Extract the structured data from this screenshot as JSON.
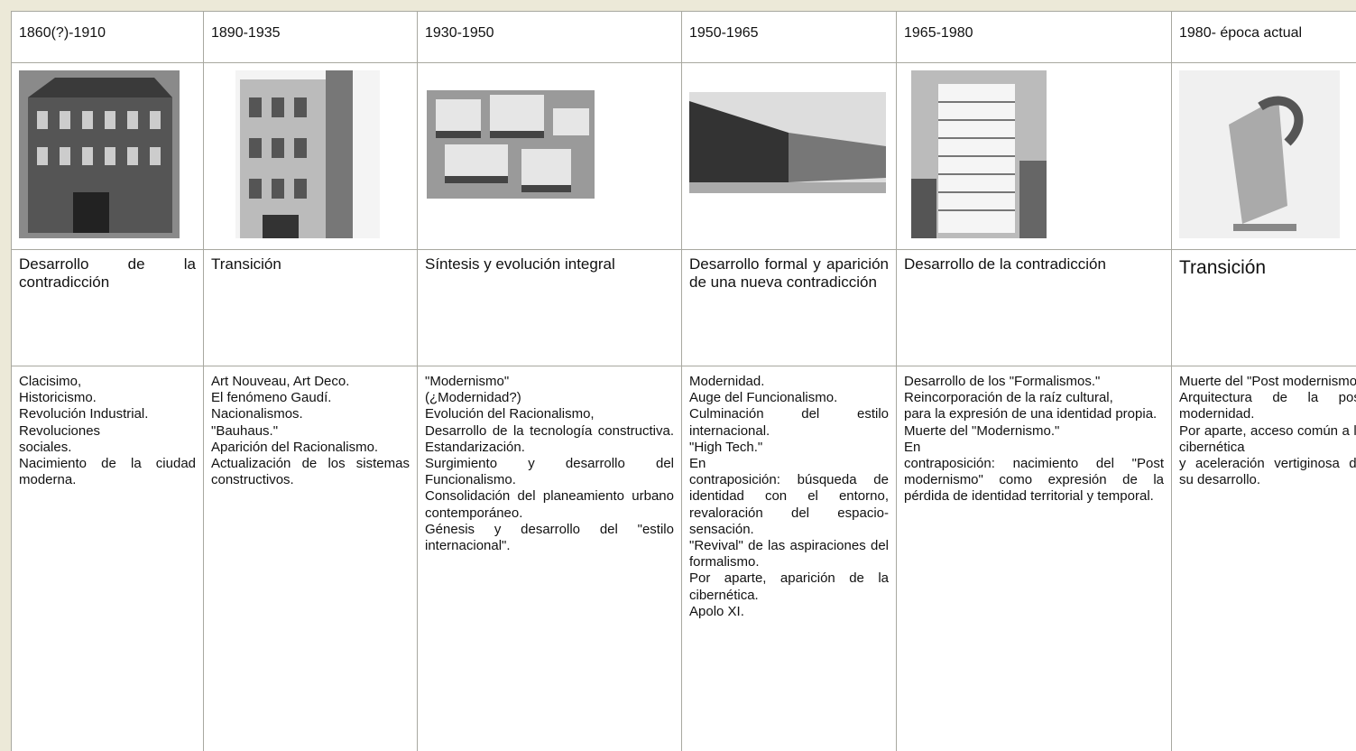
{
  "table": {
    "periods": [
      "1860(?)-1910",
      "1890-1935",
      "1930-1950",
      "1950-1965",
      "1965-1980",
      "1980- época actual"
    ],
    "titles": [
      "Desarrollo de la contradicción",
      "Transición",
      "Síntesis y evolución integral",
      "Desarrollo formal y aparición de una nueva contradicción",
      "Desarrollo de la contradicción",
      "Transición"
    ],
    "descriptions": [
      [
        "Clacisimo,",
        "Historicismo.",
        "Revolución Industrial.",
        "Revoluciones",
        "sociales.",
        "Nacimiento de la ciudad moderna."
      ],
      [
        "Art Nouveau, Art Deco.",
        "El fenómeno Gaudí.",
        "Nacionalismos.",
        "\"Bauhaus.\"",
        "Aparición del Racionalismo.",
        "Actualización de los sistemas constructivos."
      ],
      [
        "\"Modernismo\"",
        "(¿Modernidad?)",
        "Evolución del Racionalismo,",
        "Desarrollo de la tecnología constructiva. Estandarización.",
        "Surgimiento y desarrollo del Funcionalismo.",
        "Consolidación del planeamiento urbano contemporáneo.",
        "Génesis y desarrollo del \"estilo internacional\"."
      ],
      [
        "Modernidad.",
        "Auge del Funcionalismo.",
        "Culminación del estilo internacional.",
        "\"High Tech.\"",
        "En",
        "contraposición: búsqueda de identidad con el entorno, revaloración del espacio-sensación.",
        "\"Revival\" de las aspiraciones del formalismo.",
        "Por aparte, aparición de la cibernética.",
        "Apolo XI."
      ],
      [
        "Desarrollo de los \"Formalismos.\"",
        "Reincorporación de la raíz cultural,",
        "para la expresión de una identidad propia.",
        "Muerte del \"Modernismo.\"",
        "En",
        "contraposición: nacimiento del \"Post modernismo\" como expresión de la pérdida de identidad territorial y temporal."
      ],
      [
        "Muerte del \"Post modernismo\"",
        "Arquitectura de la post modernidad.",
        "Por aparte, acceso común a la cibernética",
        "y aceleración vertiginosa de su desarrollo."
      ]
    ]
  }
}
